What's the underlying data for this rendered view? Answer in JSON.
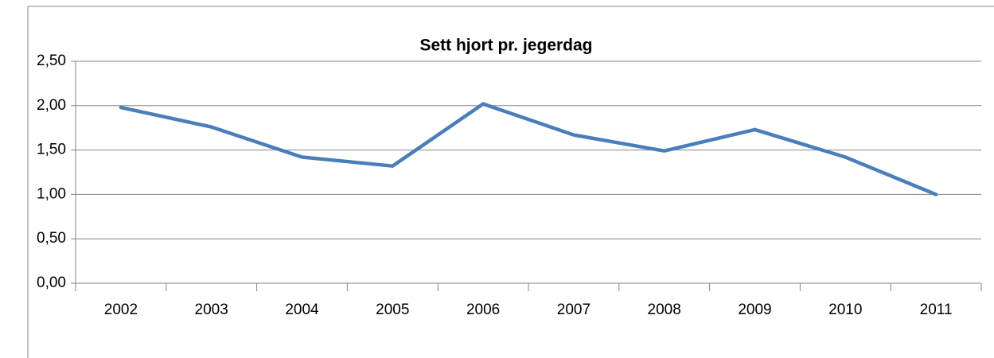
{
  "chart_data": {
    "type": "line",
    "title": "Sett hjort pr. jegerdag",
    "categories": [
      "2002",
      "2003",
      "2004",
      "2005",
      "2006",
      "2007",
      "2008",
      "2009",
      "2010",
      "2011"
    ],
    "series": [
      {
        "name": "Sett hjort pr. jegerdag",
        "color": "#4a7ebb",
        "values": [
          1.98,
          1.76,
          1.42,
          1.32,
          2.02,
          1.67,
          1.49,
          1.73,
          1.42,
          1.0
        ]
      }
    ],
    "ylim": [
      0,
      2.5
    ],
    "yticks": [
      {
        "value": 0,
        "label": "0,00"
      },
      {
        "value": 0.5,
        "label": "0,50"
      },
      {
        "value": 1,
        "label": "1,00"
      },
      {
        "value": 1.5,
        "label": "1,50"
      },
      {
        "value": 2,
        "label": "2,00"
      },
      {
        "value": 2.5,
        "label": "2,50"
      }
    ],
    "grid": true,
    "legend": false
  }
}
